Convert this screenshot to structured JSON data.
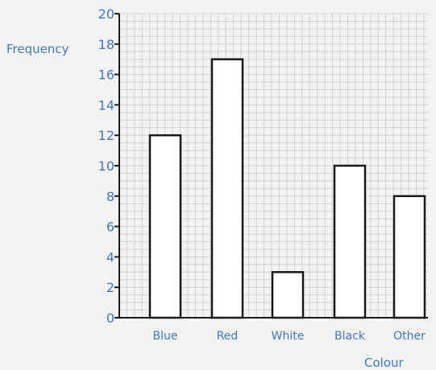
{
  "chart_data": {
    "type": "bar",
    "categories": [
      "Blue",
      "Red",
      "White",
      "Black",
      "Other"
    ],
    "values": [
      12,
      17,
      3,
      10,
      8
    ],
    "title": "",
    "xlabel": "Colour",
    "ylabel": "Frequency",
    "ylim": [
      0,
      20
    ],
    "y_ticks": [
      0,
      2,
      4,
      6,
      8,
      10,
      12,
      14,
      16,
      18,
      20
    ],
    "grid": true,
    "bar_fill": "#ffffff",
    "bar_stroke": "#1a1a1a",
    "label_color": "#3d79c2",
    "grid_color": "#d2d2d2"
  }
}
